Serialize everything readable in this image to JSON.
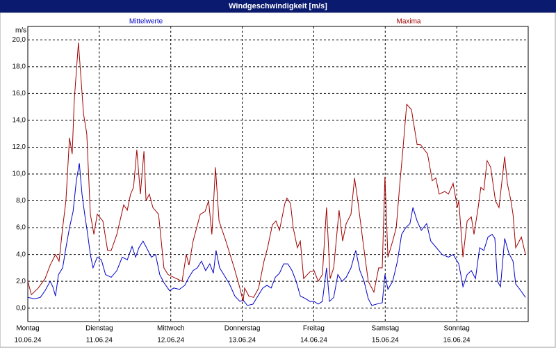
{
  "chart_data": {
    "type": "line",
    "title": "Windgeschwindigkeit [m/s]",
    "y_unit": "m/s",
    "xlim": [
      0,
      168
    ],
    "ylim": [
      -1,
      21
    ],
    "grid": true,
    "xticks": [
      {
        "value": 0,
        "label": "Montag"
      },
      {
        "value": 24,
        "label": "Dienstag"
      },
      {
        "value": 48,
        "label": "Mittwoch"
      },
      {
        "value": 72,
        "label": "Donnerstag"
      },
      {
        "value": 96,
        "label": "Freitag"
      },
      {
        "value": 120,
        "label": "Samstag"
      },
      {
        "value": 144,
        "label": "Sonntag"
      }
    ],
    "xtick_dates": [
      "10.06.24",
      "11.06.24",
      "12.06.24",
      "13.06.24",
      "14.06.24",
      "15.06.24",
      "16.06.24"
    ],
    "yticks": [
      {
        "value": 0,
        "label": "0,0"
      },
      {
        "value": 2,
        "label": "2,0"
      },
      {
        "value": 4,
        "label": "4,0"
      },
      {
        "value": 6,
        "label": "6,0"
      },
      {
        "value": 8,
        "label": "8,0"
      },
      {
        "value": 10,
        "label": "10,0"
      },
      {
        "value": 12,
        "label": "12,0"
      },
      {
        "value": 14,
        "label": "14,0"
      },
      {
        "value": 16,
        "label": "16,0"
      },
      {
        "value": 18,
        "label": "18,0"
      },
      {
        "value": 20,
        "label": "20,0"
      }
    ],
    "series": [
      {
        "name": "Mittelwerte",
        "color": "#0000c8",
        "x": [
          0,
          2.3,
          4.2,
          5.8,
          7.5,
          8.4,
          9.3,
          10.3,
          11.7,
          12.8,
          14,
          15.2,
          16.3,
          17.3,
          18.2,
          19.1,
          20.1,
          21,
          21.9,
          23.3,
          24.7,
          26.1,
          28,
          29.9,
          31.7,
          33.4,
          35,
          36.2,
          37.3,
          38.7,
          40.1,
          41.5,
          42.9,
          44.3,
          45.7,
          47.6,
          49,
          50.9,
          52.7,
          54.1,
          55.5,
          56.9,
          58.3,
          59.7,
          61.1,
          62.3,
          63.2,
          64.4,
          65.8,
          67.7,
          69.5,
          71.2,
          72.3,
          73.7,
          75.6,
          77.5,
          78.9,
          80.3,
          81.7,
          83.1,
          84.5,
          85.9,
          87.3,
          88.7,
          90.1,
          91.5,
          93.3,
          94.7,
          96.1,
          97.5,
          98.9,
          100.3,
          101.3,
          102.7,
          104.1,
          105.5,
          106.9,
          108.5,
          110.1,
          111.5,
          112.9,
          114.3,
          115.5,
          117.1,
          119,
          119.9,
          120.9,
          122.5,
          124.1,
          125.5,
          126.9,
          128.3,
          129.3,
          130.7,
          132.1,
          133.9,
          135.3,
          137.2,
          139.1,
          141.2,
          142.8,
          144.7,
          146.1,
          147.5,
          148.9,
          150.3,
          151.7,
          153.1,
          154.5,
          155.9,
          156.8,
          157.7,
          158.7,
          160.1,
          161.5,
          162.9,
          163.8,
          165.2,
          167.1
        ],
        "values": [
          0.8,
          0.7,
          0.8,
          1.3,
          2.0,
          1.6,
          0.9,
          2.5,
          3.0,
          4.5,
          6.0,
          7.2,
          9.5,
          10.8,
          8.5,
          7.0,
          5.5,
          4.0,
          3.0,
          3.8,
          3.6,
          2.5,
          2.3,
          2.8,
          3.8,
          3.6,
          4.6,
          3.8,
          4.5,
          5.0,
          4.4,
          3.8,
          4.0,
          2.5,
          1.9,
          1.3,
          1.5,
          1.4,
          1.7,
          2.3,
          2.8,
          3.0,
          3.5,
          2.8,
          3.3,
          2.6,
          4.3,
          3.0,
          2.5,
          1.8,
          0.9,
          0.5,
          0.6,
          0.2,
          0.3,
          1.0,
          1.5,
          1.7,
          1.5,
          2.3,
          2.6,
          3.3,
          3.3,
          2.8,
          2.0,
          0.9,
          0.7,
          0.5,
          0.5,
          0.3,
          0.5,
          3.0,
          0.5,
          0.8,
          2.5,
          2.0,
          2.3,
          3.0,
          4.3,
          2.8,
          2.0,
          0.7,
          0.2,
          0.3,
          0.4,
          2.5,
          1.4,
          2.0,
          3.5,
          5.5,
          6.0,
          6.3,
          7.5,
          6.5,
          5.8,
          6.3,
          5.0,
          4.5,
          4.0,
          3.8,
          4.0,
          3.3,
          1.6,
          2.5,
          2.8,
          2.2,
          4.5,
          4.3,
          5.3,
          5.5,
          5.2,
          2.0,
          1.6,
          5.2,
          4.1,
          3.5,
          1.8,
          1.4,
          0.8
        ]
      },
      {
        "name": "Maxima",
        "color": "#a00000",
        "x": [
          0,
          1.2,
          3.5,
          5.8,
          7.5,
          9.3,
          10.5,
          11.7,
          12.8,
          14,
          14.9,
          15.6,
          17,
          18.7,
          19.8,
          21,
          22.2,
          23.3,
          25.2,
          26.8,
          28,
          29.9,
          32.2,
          33.4,
          34.5,
          35.5,
          36.6,
          37.8,
          39,
          39.7,
          40.8,
          42,
          43.9,
          45.7,
          47.1,
          49,
          51.8,
          53.2,
          54.1,
          55.5,
          57.9,
          59.5,
          60.7,
          61.8,
          63,
          64.2,
          66.5,
          69.3,
          71.2,
          72.3,
          72.8,
          74.2,
          75.8,
          77.5,
          79.3,
          80.5,
          82.1,
          83.3,
          84.5,
          86.3,
          87,
          88.2,
          89.1,
          90.5,
          91.5,
          92.6,
          94.7,
          96.1,
          97.5,
          98.9,
          100.3,
          101.5,
          102.7,
          104.5,
          105.7,
          106.9,
          108.5,
          109.7,
          110.8,
          112.5,
          114.3,
          116.2,
          117.8,
          119,
          119.9,
          120.9,
          122.5,
          123.7,
          124.8,
          126,
          127.2,
          128.8,
          130.7,
          131.8,
          134.2,
          135.8,
          137,
          138.1,
          140,
          141.2,
          142.8,
          144.2,
          144.7,
          146.1,
          147.5,
          148.9,
          149.8,
          151.2,
          152.1,
          153.1,
          154.2,
          155.4,
          157,
          158.2,
          160.1,
          161,
          162.2,
          162.9,
          163.8,
          165,
          165.7,
          167.1
        ],
        "values": [
          2.0,
          1.0,
          1.5,
          2.2,
          3.2,
          4.0,
          3.5,
          6.0,
          8.0,
          12.7,
          11.5,
          15.5,
          19.8,
          14.5,
          13.0,
          7.0,
          5.5,
          7.0,
          6.5,
          4.3,
          4.3,
          5.5,
          7.7,
          7.3,
          8.5,
          9.0,
          11.8,
          8.5,
          11.7,
          8.0,
          8.5,
          7.5,
          7.0,
          3.0,
          2.5,
          2.3,
          2.0,
          4.0,
          3.2,
          5.0,
          7.0,
          7.2,
          8.0,
          5.5,
          10.5,
          6.5,
          5.0,
          3.0,
          1.5,
          0.5,
          1.5,
          0.9,
          0.8,
          1.5,
          3.5,
          4.5,
          6.2,
          6.5,
          5.8,
          7.8,
          8.2,
          7.8,
          6.0,
          4.5,
          5.0,
          2.2,
          2.7,
          2.8,
          2.0,
          2.5,
          7.5,
          2.2,
          3.0,
          7.3,
          5.0,
          6.3,
          7.0,
          9.7,
          8.0,
          5.0,
          2.0,
          1.2,
          3.0,
          3.0,
          9.8,
          3.8,
          5.0,
          6.0,
          9.0,
          12.0,
          15.2,
          14.8,
          12.2,
          12.2,
          11.5,
          9.5,
          9.7,
          8.5,
          8.7,
          8.5,
          9.3,
          7.5,
          8.0,
          3.8,
          6.5,
          6.8,
          5.5,
          7.5,
          9.0,
          8.8,
          11.0,
          10.5,
          8.0,
          7.5,
          11.3,
          9.3,
          8.0,
          7.0,
          4.5,
          5.0,
          5.3,
          4.0
        ]
      }
    ]
  }
}
